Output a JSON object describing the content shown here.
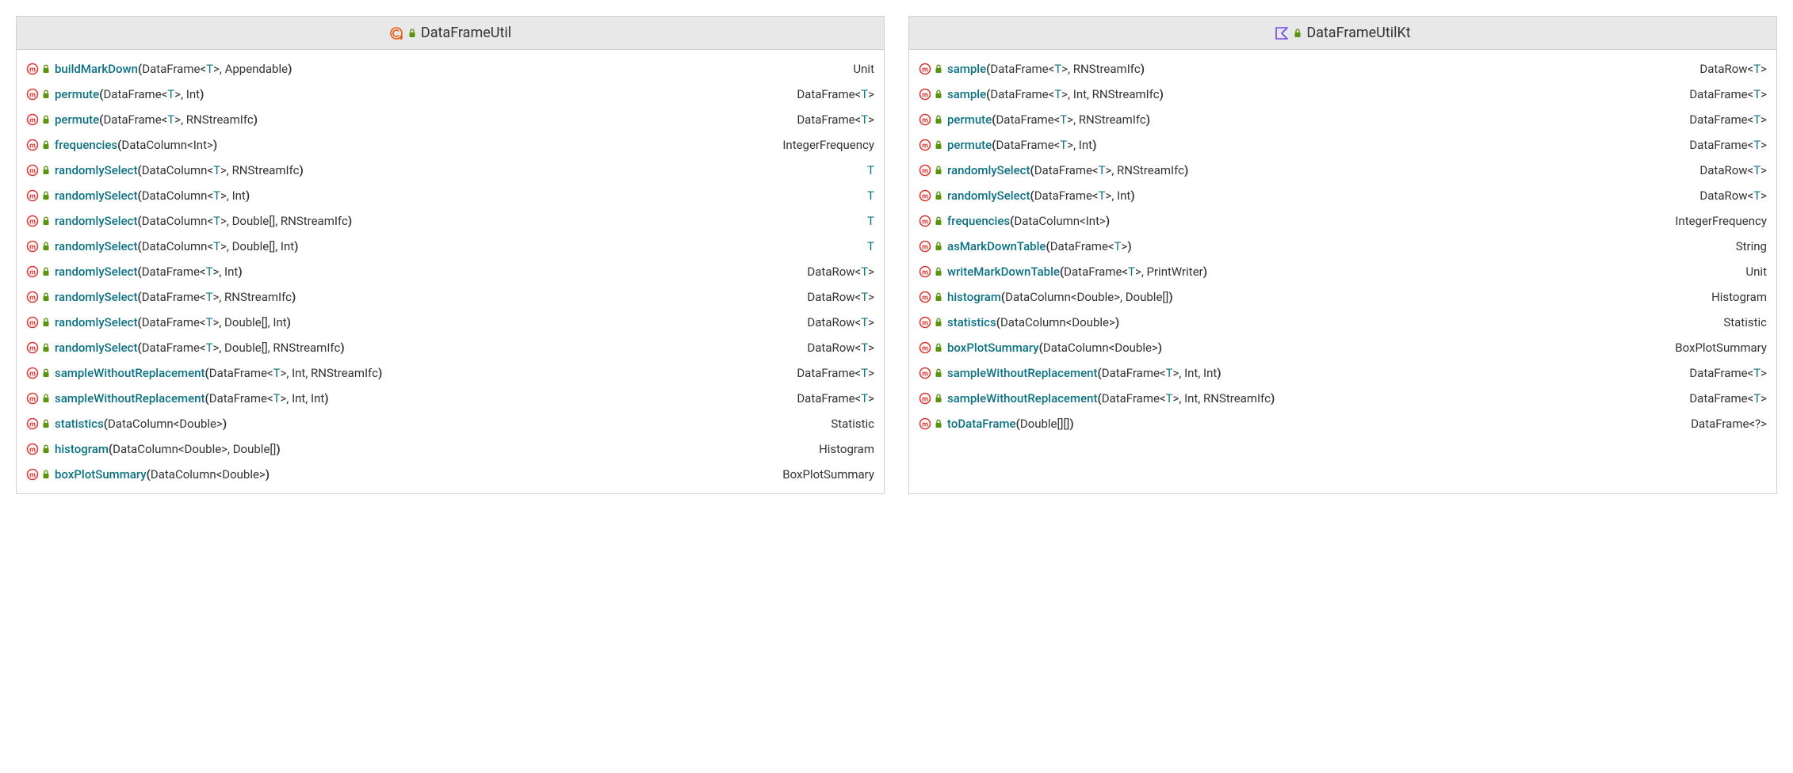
{
  "colors": {
    "method_icon_stroke": "#e03131",
    "lock_icon_fill": "#5c940d",
    "kotlin_icon_stroke": "#7048e8",
    "class_icon_stroke": "#e8590c",
    "method_name": "#0b7285",
    "generic": "#0b7285",
    "text": "#333333",
    "header_bg": "#e8e8e8",
    "border": "#d0d0d0",
    "bg": "#ffffff"
  },
  "panels": [
    {
      "icon": "class",
      "title": "DataFrameUtil",
      "methods": [
        {
          "name": "buildMarkDown",
          "params": [
            {
              "t": "DataFrame<",
              "g": "T",
              "s": ">"
            },
            {
              "t": ", Appendable"
            }
          ],
          "ret": [
            {
              "t": "Unit"
            }
          ]
        },
        {
          "name": "permute",
          "params": [
            {
              "t": "DataFrame<",
              "g": "T",
              "s": ">"
            },
            {
              "t": ", Int"
            }
          ],
          "ret": [
            {
              "t": "DataFrame<",
              "g": "T",
              "s": ">"
            }
          ]
        },
        {
          "name": "permute",
          "params": [
            {
              "t": "DataFrame<",
              "g": "T",
              "s": ">"
            },
            {
              "t": ", RNStreamIfc"
            }
          ],
          "ret": [
            {
              "t": "DataFrame<",
              "g": "T",
              "s": ">"
            }
          ]
        },
        {
          "name": "frequencies",
          "params": [
            {
              "t": "DataColumn<Int>"
            }
          ],
          "ret": [
            {
              "t": "IntegerFrequency"
            }
          ]
        },
        {
          "name": "randomlySelect",
          "params": [
            {
              "t": "DataColumn<",
              "g": "T",
              "s": ">"
            },
            {
              "t": ", RNStreamIfc"
            }
          ],
          "ret": [
            {
              "g": "T"
            }
          ]
        },
        {
          "name": "randomlySelect",
          "params": [
            {
              "t": "DataColumn<",
              "g": "T",
              "s": ">"
            },
            {
              "t": ", Int"
            }
          ],
          "ret": [
            {
              "g": "T"
            }
          ]
        },
        {
          "name": "randomlySelect",
          "params": [
            {
              "t": "DataColumn<",
              "g": "T",
              "s": ">"
            },
            {
              "t": ", Double[], RNStreamIfc"
            }
          ],
          "ret": [
            {
              "g": "T"
            }
          ]
        },
        {
          "name": "randomlySelect",
          "params": [
            {
              "t": "DataColumn<",
              "g": "T",
              "s": ">"
            },
            {
              "t": ", Double[], Int"
            }
          ],
          "ret": [
            {
              "g": "T"
            }
          ]
        },
        {
          "name": "randomlySelect",
          "params": [
            {
              "t": "DataFrame<",
              "g": "T",
              "s": ">"
            },
            {
              "t": ", Int"
            }
          ],
          "ret": [
            {
              "t": "DataRow<",
              "g": "T",
              "s": ">"
            }
          ]
        },
        {
          "name": "randomlySelect",
          "params": [
            {
              "t": "DataFrame<",
              "g": "T",
              "s": ">"
            },
            {
              "t": ", RNStreamIfc"
            }
          ],
          "ret": [
            {
              "t": "DataRow<",
              "g": "T",
              "s": ">"
            }
          ]
        },
        {
          "name": "randomlySelect",
          "params": [
            {
              "t": "DataFrame<",
              "g": "T",
              "s": ">"
            },
            {
              "t": ", Double[], Int"
            }
          ],
          "ret": [
            {
              "t": "DataRow<",
              "g": "T",
              "s": ">"
            }
          ]
        },
        {
          "name": "randomlySelect",
          "params": [
            {
              "t": "DataFrame<",
              "g": "T",
              "s": ">"
            },
            {
              "t": ", Double[], RNStreamIfc"
            }
          ],
          "ret": [
            {
              "t": "DataRow<",
              "g": "T",
              "s": ">"
            }
          ]
        },
        {
          "name": "sampleWithoutReplacement",
          "params": [
            {
              "t": "DataFrame<",
              "g": "T",
              "s": ">"
            },
            {
              "t": ", Int, RNStreamIfc"
            }
          ],
          "ret": [
            {
              "t": "DataFrame<",
              "g": "T",
              "s": ">"
            }
          ]
        },
        {
          "name": "sampleWithoutReplacement",
          "params": [
            {
              "t": "DataFrame<",
              "g": "T",
              "s": ">"
            },
            {
              "t": ", Int, Int"
            }
          ],
          "ret": [
            {
              "t": "DataFrame<",
              "g": "T",
              "s": ">"
            }
          ]
        },
        {
          "name": "statistics",
          "params": [
            {
              "t": "DataColumn<Double>"
            }
          ],
          "ret": [
            {
              "t": "Statistic"
            }
          ]
        },
        {
          "name": "histogram",
          "params": [
            {
              "t": "DataColumn<Double>, Double[]"
            }
          ],
          "ret": [
            {
              "t": "Histogram"
            }
          ]
        },
        {
          "name": "boxPlotSummary",
          "params": [
            {
              "t": "DataColumn<Double>"
            }
          ],
          "ret": [
            {
              "t": "BoxPlotSummary"
            }
          ]
        }
      ]
    },
    {
      "icon": "kotlin",
      "title": "DataFrameUtilKt",
      "methods": [
        {
          "name": "sample",
          "params": [
            {
              "t": "DataFrame<",
              "g": "T",
              "s": ">"
            },
            {
              "t": ", RNStreamIfc"
            }
          ],
          "ret": [
            {
              "t": "DataRow<",
              "g": "T",
              "s": ">"
            }
          ]
        },
        {
          "name": "sample",
          "params": [
            {
              "t": "DataFrame<",
              "g": "T",
              "s": ">"
            },
            {
              "t": ", Int, RNStreamIfc"
            }
          ],
          "ret": [
            {
              "t": "DataFrame<",
              "g": "T",
              "s": ">"
            }
          ]
        },
        {
          "name": "permute",
          "params": [
            {
              "t": "DataFrame<",
              "g": "T",
              "s": ">"
            },
            {
              "t": ", RNStreamIfc"
            }
          ],
          "ret": [
            {
              "t": "DataFrame<",
              "g": "T",
              "s": ">"
            }
          ]
        },
        {
          "name": "permute",
          "params": [
            {
              "t": "DataFrame<",
              "g": "T",
              "s": ">"
            },
            {
              "t": ", Int"
            }
          ],
          "ret": [
            {
              "t": "DataFrame<",
              "g": "T",
              "s": ">"
            }
          ]
        },
        {
          "name": "randomlySelect",
          "params": [
            {
              "t": "DataFrame<",
              "g": "T",
              "s": ">"
            },
            {
              "t": ", RNStreamIfc"
            }
          ],
          "ret": [
            {
              "t": "DataRow<",
              "g": "T",
              "s": ">"
            }
          ]
        },
        {
          "name": "randomlySelect",
          "params": [
            {
              "t": "DataFrame<",
              "g": "T",
              "s": ">"
            },
            {
              "t": ", Int"
            }
          ],
          "ret": [
            {
              "t": "DataRow<",
              "g": "T",
              "s": ">"
            }
          ]
        },
        {
          "name": "frequencies",
          "params": [
            {
              "t": "DataColumn<Int>"
            }
          ],
          "ret": [
            {
              "t": "IntegerFrequency"
            }
          ]
        },
        {
          "name": "asMarkDownTable",
          "params": [
            {
              "t": "DataFrame<",
              "g": "T",
              "s": ">"
            }
          ],
          "ret": [
            {
              "t": "String"
            }
          ]
        },
        {
          "name": "writeMarkDownTable",
          "params": [
            {
              "t": "DataFrame<",
              "g": "T",
              "s": ">"
            },
            {
              "t": ", PrintWriter"
            }
          ],
          "ret": [
            {
              "t": "Unit"
            }
          ]
        },
        {
          "name": "histogram",
          "params": [
            {
              "t": "DataColumn<Double>, Double[]"
            }
          ],
          "ret": [
            {
              "t": "Histogram"
            }
          ]
        },
        {
          "name": "statistics",
          "params": [
            {
              "t": "DataColumn<Double>"
            }
          ],
          "ret": [
            {
              "t": "Statistic"
            }
          ]
        },
        {
          "name": "boxPlotSummary",
          "params": [
            {
              "t": "DataColumn<Double>"
            }
          ],
          "ret": [
            {
              "t": "BoxPlotSummary"
            }
          ]
        },
        {
          "name": "sampleWithoutReplacement",
          "params": [
            {
              "t": "DataFrame<",
              "g": "T",
              "s": ">"
            },
            {
              "t": ", Int, Int"
            }
          ],
          "ret": [
            {
              "t": "DataFrame<",
              "g": "T",
              "s": ">"
            }
          ]
        },
        {
          "name": "sampleWithoutReplacement",
          "params": [
            {
              "t": "DataFrame<",
              "g": "T",
              "s": ">"
            },
            {
              "t": ", Int, RNStreamIfc"
            }
          ],
          "ret": [
            {
              "t": "DataFrame<",
              "g": "T",
              "s": ">"
            }
          ]
        },
        {
          "name": "toDataFrame",
          "params": [
            {
              "t": "Double[][]"
            }
          ],
          "ret": [
            {
              "t": "DataFrame<?>"
            }
          ]
        }
      ]
    }
  ]
}
